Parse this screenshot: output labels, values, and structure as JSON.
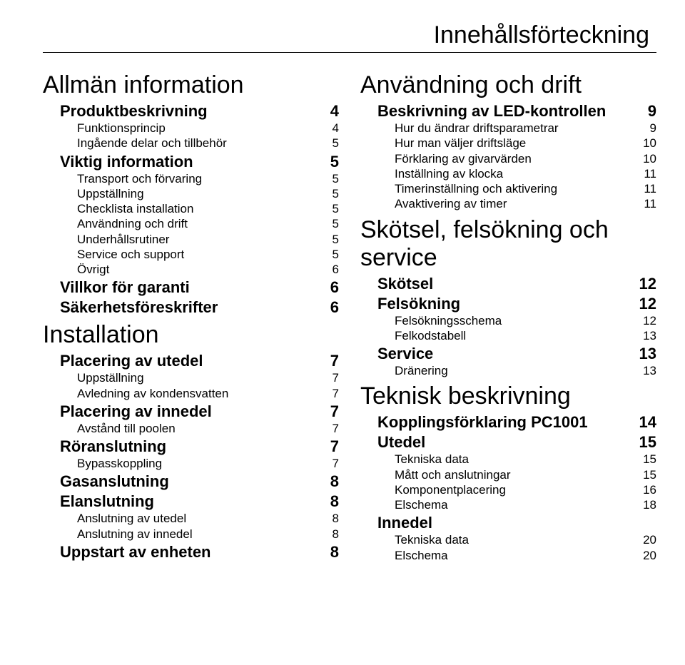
{
  "title": "Innehållsförteckning",
  "left": [
    {
      "type": "h1",
      "label": "Allmän information"
    },
    {
      "type": "l1",
      "label": "Produktbeskrivning",
      "page": "4"
    },
    {
      "type": "l2",
      "label": "Funktionsprincip",
      "page": "4"
    },
    {
      "type": "l2",
      "label": "Ingående delar och tillbehör",
      "page": "5"
    },
    {
      "type": "l1",
      "label": "Viktig information",
      "page": "5"
    },
    {
      "type": "l2",
      "label": "Transport och förvaring",
      "page": "5"
    },
    {
      "type": "l2",
      "label": "Uppställning",
      "page": "5"
    },
    {
      "type": "l2",
      "label": "Checklista installation",
      "page": "5"
    },
    {
      "type": "l2",
      "label": "Användning och drift",
      "page": "5"
    },
    {
      "type": "l2",
      "label": "Underhållsrutiner",
      "page": "5"
    },
    {
      "type": "l2",
      "label": "Service och support",
      "page": "5"
    },
    {
      "type": "l2",
      "label": "Övrigt",
      "page": "6"
    },
    {
      "type": "l1",
      "label": "Villkor för garanti",
      "page": "6"
    },
    {
      "type": "l1",
      "label": "Säkerhetsföreskrifter",
      "page": "6"
    },
    {
      "type": "h1",
      "label": "Installation"
    },
    {
      "type": "l1",
      "label": "Placering av utedel",
      "page": "7"
    },
    {
      "type": "l2",
      "label": "Uppställning",
      "page": "7"
    },
    {
      "type": "l2",
      "label": "Avledning av kondensvatten",
      "page": "7"
    },
    {
      "type": "l1",
      "label": "Placering av innedel",
      "page": "7"
    },
    {
      "type": "l2",
      "label": "Avstånd till poolen",
      "page": "7"
    },
    {
      "type": "l1",
      "label": "Röranslutning",
      "page": "7"
    },
    {
      "type": "l2",
      "label": "Bypasskoppling",
      "page": "7"
    },
    {
      "type": "l1",
      "label": "Gasanslutning",
      "page": "8"
    },
    {
      "type": "l1",
      "label": "Elanslutning",
      "page": "8"
    },
    {
      "type": "l2",
      "label": "Anslutning av utedel",
      "page": "8"
    },
    {
      "type": "l2",
      "label": "Anslutning av innedel",
      "page": "8"
    },
    {
      "type": "l1",
      "label": "Uppstart av enheten",
      "page": "8"
    }
  ],
  "right": [
    {
      "type": "h1",
      "label": "Användning och drift"
    },
    {
      "type": "l1",
      "label": "Beskrivning av LED-kontrollen",
      "page": "9"
    },
    {
      "type": "l2",
      "label": "Hur du ändrar driftsparametrar",
      "page": "9"
    },
    {
      "type": "l2",
      "label": "Hur man väljer driftsläge",
      "page": "10"
    },
    {
      "type": "l2",
      "label": "Förklaring av givarvärden",
      "page": "10"
    },
    {
      "type": "l2",
      "label": "Inställning av klocka",
      "page": "11"
    },
    {
      "type": "l2",
      "label": "Timerinställning och aktivering",
      "page": "11"
    },
    {
      "type": "l2",
      "label": "Avaktivering av timer",
      "page": "11"
    },
    {
      "type": "h1",
      "label": "Skötsel, felsökning och service"
    },
    {
      "type": "l1",
      "label": "Skötsel",
      "page": "12"
    },
    {
      "type": "l1",
      "label": "Felsökning",
      "page": "12"
    },
    {
      "type": "l2",
      "label": "Felsökningsschema",
      "page": "12"
    },
    {
      "type": "l2",
      "label": "Felkodstabell",
      "page": "13"
    },
    {
      "type": "l1",
      "label": "Service",
      "page": "13"
    },
    {
      "type": "l2",
      "label": "Dränering",
      "page": "13"
    },
    {
      "type": "h1",
      "label": "Teknisk beskrivning"
    },
    {
      "type": "l1",
      "label": "Kopplingsförklaring PC1001",
      "page": "14"
    },
    {
      "type": "l1",
      "label": "Utedel",
      "page": "15"
    },
    {
      "type": "l2",
      "label": "Tekniska data",
      "page": "15"
    },
    {
      "type": "l2",
      "label": "Mått och anslutningar",
      "page": "15"
    },
    {
      "type": "l2",
      "label": "Komponentplacering",
      "page": "16"
    },
    {
      "type": "l2",
      "label": "Elschema",
      "page": "18"
    },
    {
      "type": "l1",
      "label": "Innedel",
      "page": ""
    },
    {
      "type": "l2",
      "label": "Tekniska data",
      "page": "20"
    },
    {
      "type": "l2",
      "label": "Elschema",
      "page": "20"
    }
  ]
}
